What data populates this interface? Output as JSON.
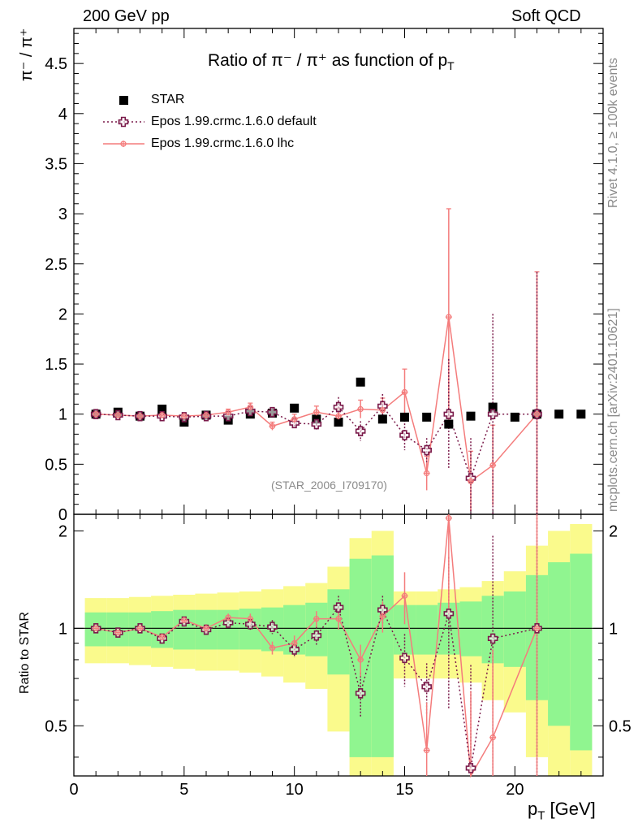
{
  "header": {
    "left": "200 GeV pp",
    "right": "Soft QCD"
  },
  "side_labels": {
    "rivet": "Rivet 4.1.0, ≥ 100k events",
    "mcplots": "mcplots.cern.ch [arXiv:2401.10621]"
  },
  "colors": {
    "star": "#000000",
    "default": "#7a1a4a",
    "lhc": "#f47c7c",
    "band_green": "#90f590",
    "band_yellow": "#fafa8c"
  },
  "chart_data": {
    "type": "scatter",
    "title_main": "Ratio of π⁻ / π⁺ as function of p",
    "title_sub": "T",
    "ylabel_main": "π⁻ / π⁺",
    "ylabel_ratio": "Ratio to STAR",
    "xlabel": "p",
    "xlabel_sub": "T",
    "xlabel_unit": "[GeV]",
    "watermark": "(STAR_2006_I709170)",
    "xlim": [
      0,
      24
    ],
    "ylim_main": [
      0,
      4.85
    ],
    "ylim_ratio": [
      0.35,
      2.25
    ],
    "x_ticks": [
      "0",
      "5",
      "10",
      "15",
      "20"
    ],
    "y_ticks_main": [
      "0",
      "0.5",
      "1",
      "1.5",
      "2",
      "2.5",
      "3",
      "3.5",
      "4",
      "4.5"
    ],
    "y_ticks_ratio": [
      "0.5",
      "1",
      "2"
    ],
    "legend": [
      "STAR",
      "Epos 1.99.crmc.1.6.0 default",
      "Epos 1.99.crmc.1.6.0 lhc"
    ],
    "series": [
      {
        "name": "STAR",
        "x": [
          1,
          2,
          3,
          4,
          5,
          6,
          7,
          8,
          9,
          10,
          11,
          12,
          13,
          14,
          15,
          16,
          17,
          18,
          19,
          20,
          21,
          22,
          23
        ],
        "y": [
          1.0,
          1.02,
          0.98,
          1.05,
          0.92,
          0.99,
          0.94,
          1.0,
          1.01,
          1.06,
          0.95,
          0.92,
          1.32,
          0.95,
          0.97,
          0.97,
          0.9,
          0.98,
          1.07,
          0.97,
          1.0,
          1.0,
          1.0
        ]
      },
      {
        "name": "Epos 1.99.crmc.1.6.0 default",
        "x": [
          1,
          2,
          3,
          4,
          5,
          6,
          7,
          8,
          9,
          10,
          11,
          12,
          13,
          14,
          15,
          16,
          17,
          18,
          19,
          21
        ],
        "y": [
          1.0,
          0.99,
          0.98,
          0.98,
          0.97,
          0.98,
          0.98,
          1.03,
          1.02,
          0.91,
          0.9,
          1.07,
          0.83,
          1.08,
          0.79,
          0.64,
          1.0,
          0.36,
          1.0,
          1.0
        ],
        "err": [
          0.02,
          0.02,
          0.02,
          0.02,
          0.03,
          0.03,
          0.03,
          0.04,
          0.05,
          0.05,
          0.06,
          0.1,
          0.1,
          0.12,
          0.15,
          0.12,
          0.55,
          0.4,
          1.0,
          1.42
        ]
      },
      {
        "name": "Epos 1.99.crmc.1.6.0 lhc",
        "x": [
          1,
          2,
          3,
          4,
          5,
          6,
          7,
          8,
          9,
          10,
          11,
          12,
          13,
          14,
          15,
          16,
          17,
          18,
          19,
          21
        ],
        "y": [
          1.0,
          0.99,
          0.98,
          0.99,
          0.98,
          0.99,
          1.02,
          1.07,
          0.88,
          0.95,
          1.02,
          0.98,
          1.05,
          1.04,
          1.22,
          0.41,
          1.97,
          0.33,
          0.49,
          1.0
        ],
        "err": [
          0.02,
          0.02,
          0.02,
          0.02,
          0.02,
          0.03,
          0.03,
          0.04,
          0.04,
          0.05,
          0.06,
          0.08,
          0.09,
          0.12,
          0.23,
          0.17,
          1.08,
          0.3,
          0.4,
          1.42
        ]
      }
    ],
    "ratio": {
      "default": [
        1.0,
        0.97,
        1.0,
        0.93,
        1.05,
        0.99,
        1.04,
        1.03,
        1.01,
        0.86,
        0.95,
        1.16,
        0.63,
        1.14,
        0.81,
        0.66,
        1.11,
        0.37,
        0.93,
        1.0
      ],
      "lhc": [
        1.0,
        0.97,
        1.0,
        0.94,
        1.06,
        1.0,
        1.08,
        1.07,
        0.87,
        0.9,
        1.07,
        1.07,
        0.8,
        1.09,
        1.26,
        0.42,
        2.19,
        0.34,
        0.46,
        1.0
      ],
      "band_x": [
        0.5,
        1.5,
        2.5,
        3.5,
        4.5,
        5.5,
        6.5,
        7.5,
        8.5,
        9.5,
        10.5,
        11.5,
        12.5,
        13.5,
        14.5,
        15.5,
        16.5,
        17.5,
        18.5,
        19.5,
        20.5,
        21.5,
        22.5,
        23.5
      ],
      "band_green_lo": [
        0.88,
        0.88,
        0.88,
        0.87,
        0.86,
        0.86,
        0.86,
        0.86,
        0.85,
        0.83,
        0.82,
        0.72,
        0.4,
        0.4,
        0.83,
        0.83,
        0.83,
        0.82,
        0.78,
        0.76,
        0.6,
        0.5,
        0.42
      ],
      "band_green_hi": [
        1.12,
        1.12,
        1.12,
        1.13,
        1.14,
        1.14,
        1.14,
        1.15,
        1.16,
        1.18,
        1.2,
        1.32,
        1.64,
        1.68,
        1.18,
        1.18,
        1.2,
        1.21,
        1.26,
        1.3,
        1.46,
        1.6,
        1.7
      ],
      "band_yellow_lo": [
        0.78,
        0.78,
        0.77,
        0.76,
        0.75,
        0.74,
        0.74,
        0.73,
        0.71,
        0.68,
        0.65,
        0.48,
        0.35,
        0.35,
        0.7,
        0.7,
        0.7,
        0.68,
        0.6,
        0.55,
        0.4,
        0.35,
        0.35
      ],
      "band_yellow_hi": [
        1.24,
        1.24,
        1.25,
        1.26,
        1.27,
        1.28,
        1.29,
        1.3,
        1.32,
        1.35,
        1.38,
        1.55,
        1.9,
        2.0,
        1.3,
        1.3,
        1.32,
        1.34,
        1.4,
        1.5,
        1.8,
        2.0,
        2.1
      ]
    }
  }
}
